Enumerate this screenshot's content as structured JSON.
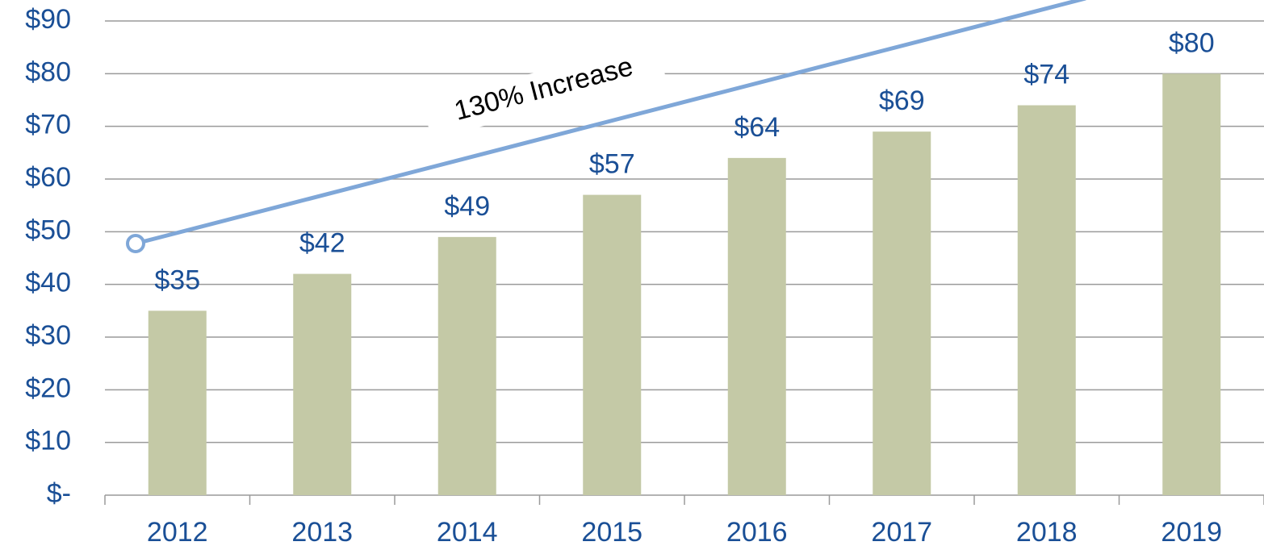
{
  "chart_data": {
    "type": "bar",
    "annotation": "130% Increase",
    "categories": [
      "2012",
      "2013",
      "2014",
      "2015",
      "2016",
      "2017",
      "2018",
      "2019"
    ],
    "values": [
      35,
      42,
      49,
      57,
      64,
      69,
      74,
      80
    ],
    "value_labels": [
      "$35",
      "$42",
      "$49",
      "$57",
      "$64",
      "$69",
      "$74",
      "$80"
    ],
    "color": "#c4c9a6",
    "ylim": [
      0,
      90
    ],
    "yticks": [
      {
        "value": 0,
        "label": "$-"
      },
      {
        "value": 10,
        "label": "$10"
      },
      {
        "value": 20,
        "label": "$20"
      },
      {
        "value": 30,
        "label": "$30"
      },
      {
        "value": 40,
        "label": "$40"
      },
      {
        "value": 50,
        "label": "$50"
      },
      {
        "value": 60,
        "label": "$60"
      },
      {
        "value": 70,
        "label": "$70"
      },
      {
        "value": 80,
        "label": "$80"
      },
      {
        "value": 90,
        "label": "$90"
      }
    ],
    "grid": true
  }
}
